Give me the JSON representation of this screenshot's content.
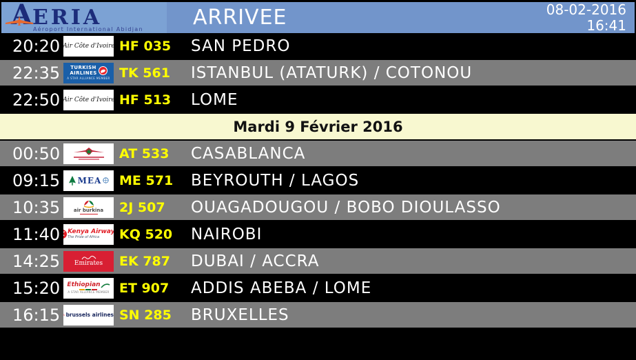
{
  "header": {
    "logo_letter": "A",
    "logo_rest": "ERIA",
    "logo_subtitle": "Aéroport International Abidjan",
    "title": "ARRIVEE",
    "date": "08-02-2016",
    "time": "16:41"
  },
  "colors": {
    "header_blue": "#7295cb",
    "logo_panel_blue": "#7ca2d4",
    "logo_navy": "#1c2c7a",
    "logo_orange": "#e8692e",
    "row_black": "#000000",
    "row_gray": "#7d7d7d",
    "date_row_cream": "#f8f8d0",
    "flight_number_yellow": "#ffff00",
    "text_white": "#ffffff"
  },
  "rows": [
    {
      "type": "flight",
      "shade": "black",
      "time": "20:20",
      "airline": "Air Côte d'Ivoire",
      "logo": "air-cote-divoire",
      "logo_label": "Air Côte d'Ivoire",
      "flight_no": "HF 035",
      "destination": "SAN PEDRO"
    },
    {
      "type": "flight",
      "shade": "gray",
      "time": "22:35",
      "airline": "Turkish Airlines",
      "logo": "turkish-airlines",
      "logo_label": "TURKISH AIRLINES",
      "logo_sub": "A STAR ALLIANCE MEMBER",
      "flight_no": "TK 561",
      "destination": "ISTANBUL (ATATURK) / COTONOU"
    },
    {
      "type": "flight",
      "shade": "black",
      "time": "22:50",
      "airline": "Air Côte d'Ivoire",
      "logo": "air-cote-divoire",
      "logo_label": "Air Côte d'Ivoire",
      "flight_no": "HF 513",
      "destination": "LOME"
    },
    {
      "type": "date",
      "label": "Mardi 9 Février 2016"
    },
    {
      "type": "flight",
      "shade": "gray",
      "time": "00:50",
      "airline": "Royal Air Maroc",
      "logo": "royal-air-maroc",
      "logo_label": "",
      "flight_no": "AT 533",
      "destination": "CASABLANCA"
    },
    {
      "type": "flight",
      "shade": "black",
      "time": "09:15",
      "airline": "Middle East Airlines",
      "logo": "mea",
      "logo_label": "MEA",
      "flight_no": "ME 571",
      "destination": "BEYROUTH / LAGOS"
    },
    {
      "type": "flight",
      "shade": "gray",
      "time": "10:35",
      "airline": "Air Burkina",
      "logo": "air-burkina",
      "logo_label": "air burkina",
      "flight_no": "2J 507",
      "destination": "OUAGADOUGOU / BOBO DIOULASSO"
    },
    {
      "type": "flight",
      "shade": "black",
      "time": "11:40",
      "airline": "Kenya Airways",
      "logo": "kenya-airways",
      "logo_label": "Kenya Airways",
      "logo_tagline": "The Pride of Africa",
      "flight_no": "KQ 520",
      "destination": "NAIROBI"
    },
    {
      "type": "flight",
      "shade": "gray",
      "time": "14:25",
      "airline": "Emirates",
      "logo": "emirates",
      "logo_label": "Emirates",
      "flight_no": "EK 787",
      "destination": "DUBAI / ACCRA"
    },
    {
      "type": "flight",
      "shade": "black",
      "time": "15:20",
      "airline": "Ethiopian Airlines",
      "logo": "ethiopian",
      "logo_label": "Ethiopian",
      "logo_sub": "A STAR ALLIANCE MEMBER",
      "flight_no": "ET 907",
      "destination": "ADDIS ABEBA / LOME"
    },
    {
      "type": "flight",
      "shade": "gray",
      "time": "16:15",
      "airline": "Brussels Airlines",
      "logo": "brussels-airlines",
      "logo_label": "brussels airlines",
      "flight_no": "SN 285",
      "destination": "BRUXELLES"
    }
  ]
}
